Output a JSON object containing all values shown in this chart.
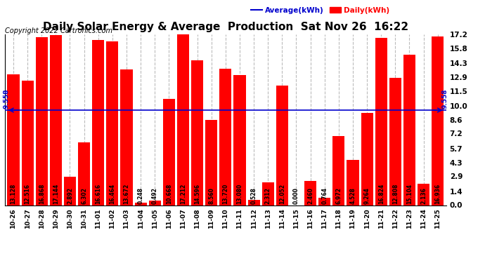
{
  "title": "Daily Solar Energy & Average  Production  Sat Nov 26  16:22",
  "copyright": "Copyright 2022 Cartronics.com",
  "categories": [
    "10-26",
    "10-27",
    "10-28",
    "10-29",
    "10-30",
    "10-31",
    "11-01",
    "11-02",
    "11-03",
    "11-04",
    "11-05",
    "11-06",
    "11-07",
    "11-08",
    "11-09",
    "11-10",
    "11-11",
    "11-12",
    "11-13",
    "11-14",
    "11-15",
    "11-16",
    "11-17",
    "11-18",
    "11-19",
    "11-20",
    "11-21",
    "11-22",
    "11-23",
    "11-24",
    "11-25"
  ],
  "values": [
    13.128,
    12.516,
    16.868,
    17.144,
    2.892,
    6.302,
    16.616,
    16.464,
    13.672,
    0.248,
    0.492,
    10.668,
    17.212,
    14.596,
    8.56,
    13.72,
    13.08,
    0.528,
    2.312,
    12.052,
    0.0,
    2.46,
    0.764,
    6.972,
    4.528,
    9.264,
    16.824,
    12.808,
    15.104,
    2.136,
    16.936
  ],
  "average": 9.558,
  "bar_color": "#ff0000",
  "average_line_color": "#0000cd",
  "background_color": "#ffffff",
  "grid_color": "#bbbbbb",
  "title_fontsize": 11,
  "copyright_fontsize": 7,
  "bar_label_fontsize": 5.5,
  "tick_fontsize": 6.5,
  "ytick_fontsize": 7.5,
  "ylim": [
    0,
    17.2
  ],
  "yticks": [
    0.0,
    1.4,
    2.9,
    4.3,
    5.7,
    7.2,
    8.6,
    10.0,
    11.5,
    12.9,
    14.3,
    15.8,
    17.2
  ],
  "average_label": "9.558",
  "legend_average_color": "#0000cd",
  "legend_daily_color": "#ff0000",
  "legend_average_text": "Average(kWh)",
  "legend_daily_text": "Daily(kWh)"
}
